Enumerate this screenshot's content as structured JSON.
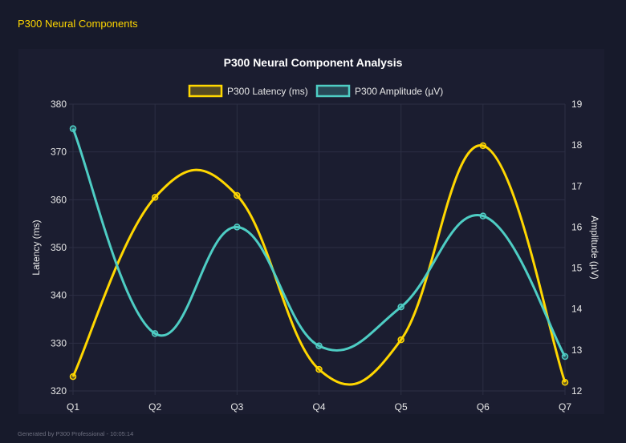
{
  "page_title": "P300 Neural Components",
  "footer": "Generated by P300 Professional - 10:05:14",
  "chart_data": {
    "type": "line",
    "title": "P300 Neural Component Analysis",
    "categories": [
      "Q1",
      "Q2",
      "Q3",
      "Q4",
      "Q5",
      "Q6",
      "Q7"
    ],
    "series": [
      {
        "name": "P300 Latency (ms)",
        "axis": "left",
        "color": "#ffd700",
        "values": [
          323.0,
          360.5,
          360.9,
          324.5,
          330.7,
          371.3,
          321.8
        ]
      },
      {
        "name": "P300 Amplitude (µV)",
        "axis": "right",
        "color": "#4ecdc4",
        "values": [
          18.4,
          13.4,
          16.0,
          13.1,
          14.05,
          16.27,
          12.84
        ]
      }
    ],
    "ylabel": "Latency (ms)",
    "y2label": "Amplitude (µV)",
    "ylim": [
      320,
      380
    ],
    "y2lim": [
      12,
      19
    ],
    "yticks": [
      "320",
      "330",
      "340",
      "350",
      "360",
      "370",
      "380"
    ],
    "y2ticks": [
      "12",
      "13",
      "14",
      "15",
      "16",
      "17",
      "18",
      "19"
    ],
    "grid": true,
    "legend": "top"
  }
}
